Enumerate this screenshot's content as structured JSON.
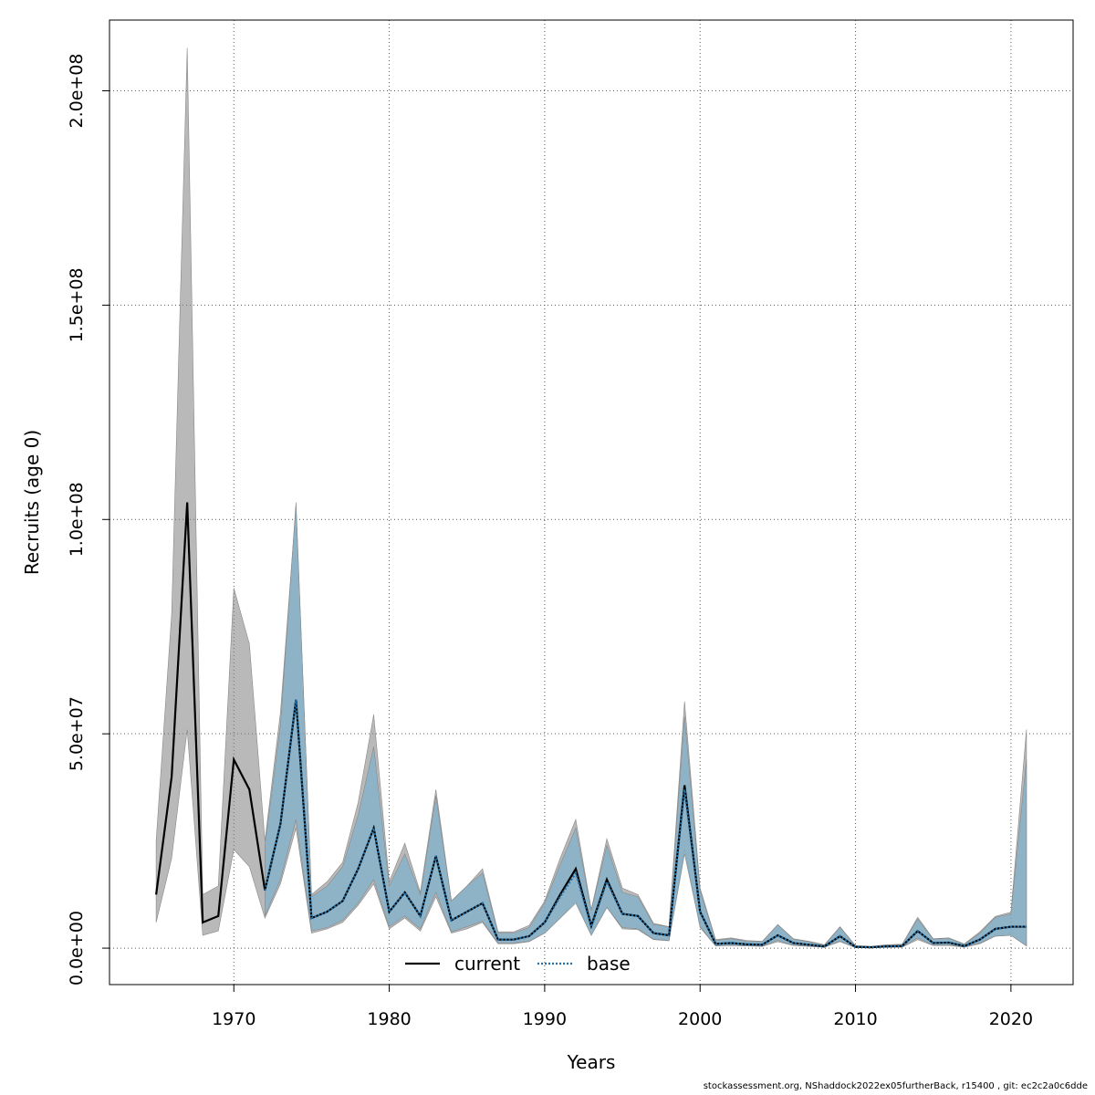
{
  "chart_data": {
    "type": "line",
    "xlabel": "Years",
    "ylabel": "Recruits (age 0)",
    "xlim": [
      1962,
      2024
    ],
    "ylim": [
      -8500000,
      216500000
    ],
    "x_ticks": [
      1970,
      1980,
      1990,
      2000,
      2010,
      2020
    ],
    "x_tick_labels": [
      "1970",
      "1980",
      "1990",
      "2000",
      "2010",
      "2020"
    ],
    "y_ticks": [
      0,
      50000000,
      100000000,
      150000000,
      200000000
    ],
    "y_tick_labels": [
      "0.0e+00",
      "5.0e+07",
      "1.0e+08",
      "1.5e+08",
      "2.0e+08"
    ],
    "grid": true,
    "legend_position": "bottom-center",
    "series": [
      {
        "name": "current",
        "color": "#000000",
        "line_style": "solid",
        "band_color": "#808080",
        "x": [
          1965,
          1966,
          1967,
          1968,
          1969,
          1970,
          1971,
          1972,
          1973,
          1974,
          1975,
          1976,
          1977,
          1978,
          1979,
          1980,
          1981,
          1982,
          1983,
          1984,
          1985,
          1986,
          1987,
          1988,
          1989,
          1990,
          1991,
          1992,
          1993,
          1994,
          1995,
          1996,
          1997,
          1998,
          1999,
          2000,
          2001,
          2002,
          2003,
          2004,
          2005,
          2006,
          2007,
          2008,
          2009,
          2010,
          2011,
          2012,
          2013,
          2014,
          2015,
          2016,
          2017,
          2018,
          2019,
          2020,
          2021
        ],
        "values": [
          12500000,
          40000000,
          104000000,
          6000000,
          7500000,
          44000000,
          37000000,
          13500000,
          29000000,
          58000000,
          7000000,
          8500000,
          11000000,
          18500000,
          28000000,
          8500000,
          13000000,
          7500000,
          21500000,
          6500000,
          8500000,
          10500000,
          2000000,
          2000000,
          2800000,
          6000000,
          12500000,
          18500000,
          5200000,
          16000000,
          8000000,
          7500000,
          3500000,
          3000000,
          38000000,
          8500000,
          1000000,
          1200000,
          900000,
          800000,
          3000000,
          1200000,
          800000,
          400000,
          2800000,
          300000,
          200000,
          400000,
          500000,
          4000000,
          1200000,
          1300000,
          500000,
          2000000,
          4500000,
          5000000,
          5000000
        ],
        "lower": [
          6000000,
          21000000,
          51000000,
          3000000,
          4000000,
          23000000,
          19000000,
          7000000,
          15000000,
          28000000,
          3500000,
          4500000,
          6000000,
          10000000,
          15000000,
          4500000,
          7000000,
          4000000,
          12000000,
          3500000,
          4500000,
          6000000,
          1000000,
          1000000,
          1500000,
          3500000,
          7000000,
          11000000,
          3000000,
          9500000,
          4500000,
          4300000,
          2000000,
          1700000,
          23000000,
          4800000,
          500000,
          600000,
          500000,
          400000,
          1500000,
          600000,
          400000,
          200000,
          1500000,
          100000,
          100000,
          200000,
          200000,
          2000000,
          600000,
          600000,
          200000,
          1000000,
          2800000,
          3000000,
          500000
        ],
        "upper": [
          25000000,
          78000000,
          210000000,
          12500000,
          14500000,
          84000000,
          71000000,
          25000000,
          55000000,
          103000000,
          12500000,
          15500000,
          20000000,
          34000000,
          54500000,
          15500000,
          24500000,
          13000000,
          37000000,
          11000000,
          14500000,
          18500000,
          3800000,
          3800000,
          5300000,
          11000000,
          21000000,
          30000000,
          9000000,
          25500000,
          14000000,
          12500000,
          5800000,
          5000000,
          57500000,
          14000000,
          2000000,
          2400000,
          1800000,
          1600000,
          5500000,
          2200000,
          1600000,
          800000,
          5000000,
          600000,
          400000,
          800000,
          900000,
          7200000,
          2200000,
          2400000,
          1000000,
          3800000,
          7400000,
          8400000,
          51000000
        ]
      },
      {
        "name": "base",
        "color": "#1f6fa8",
        "line_style": "dotted",
        "band_color": "#7eb0cc",
        "x": [
          1972,
          1973,
          1974,
          1975,
          1976,
          1977,
          1978,
          1979,
          1980,
          1981,
          1982,
          1983,
          1984,
          1985,
          1986,
          1987,
          1988,
          1989,
          1990,
          1991,
          1992,
          1993,
          1994,
          1995,
          1996,
          1997,
          1998,
          1999,
          2000,
          2001,
          2002,
          2003,
          2004,
          2005,
          2006,
          2007,
          2008,
          2009,
          2010,
          2011,
          2012,
          2013,
          2014,
          2015,
          2016,
          2017,
          2018,
          2019,
          2020,
          2021
        ],
        "values": [
          13500000,
          29000000,
          58000000,
          7000000,
          8500000,
          11000000,
          18500000,
          28000000,
          8500000,
          13000000,
          7500000,
          21500000,
          6500000,
          8500000,
          10500000,
          2000000,
          2000000,
          2800000,
          6000000,
          12000000,
          17500000,
          5000000,
          15500000,
          8000000,
          7500000,
          3500000,
          3000000,
          37000000,
          8500000,
          1000000,
          1200000,
          900000,
          800000,
          3000000,
          1200000,
          800000,
          400000,
          2800000,
          300000,
          200000,
          400000,
          500000,
          4000000,
          1200000,
          1300000,
          500000,
          2000000,
          4500000,
          5000000,
          5000000
        ],
        "lower": [
          7500000,
          16000000,
          30000000,
          4000000,
          4800000,
          6500000,
          10500000,
          16000000,
          5000000,
          7500000,
          4500000,
          13000000,
          3800000,
          5000000,
          6300000,
          1200000,
          1200000,
          1600000,
          3500000,
          7000000,
          10500000,
          3000000,
          9500000,
          4800000,
          4500000,
          2100000,
          1800000,
          22000000,
          5000000,
          600000,
          700000,
          500000,
          500000,
          1800000,
          700000,
          500000,
          200000,
          1700000,
          100000,
          100000,
          200000,
          300000,
          2400000,
          700000,
          800000,
          300000,
          1200000,
          2800000,
          3000000,
          500000
        ],
        "upper": [
          24000000,
          52000000,
          104000000,
          12000000,
          14500000,
          19000000,
          31000000,
          47000000,
          14500000,
          22000000,
          12500000,
          35500000,
          11000000,
          14500000,
          17500000,
          3500000,
          3500000,
          4800000,
          10500000,
          19500000,
          28000000,
          8800000,
          24000000,
          13000000,
          12000000,
          5500000,
          5000000,
          54000000,
          13500000,
          1800000,
          2200000,
          1600000,
          1500000,
          5500000,
          2100000,
          1500000,
          700000,
          4900000,
          500000,
          400000,
          700000,
          900000,
          6800000,
          2100000,
          2300000,
          900000,
          3500000,
          7200000,
          8000000,
          44000000
        ]
      }
    ]
  },
  "footer": "stockassessment.org, NShaddock2022ex05furtherBack, r15400 , git: ec2c2a0c6dde"
}
